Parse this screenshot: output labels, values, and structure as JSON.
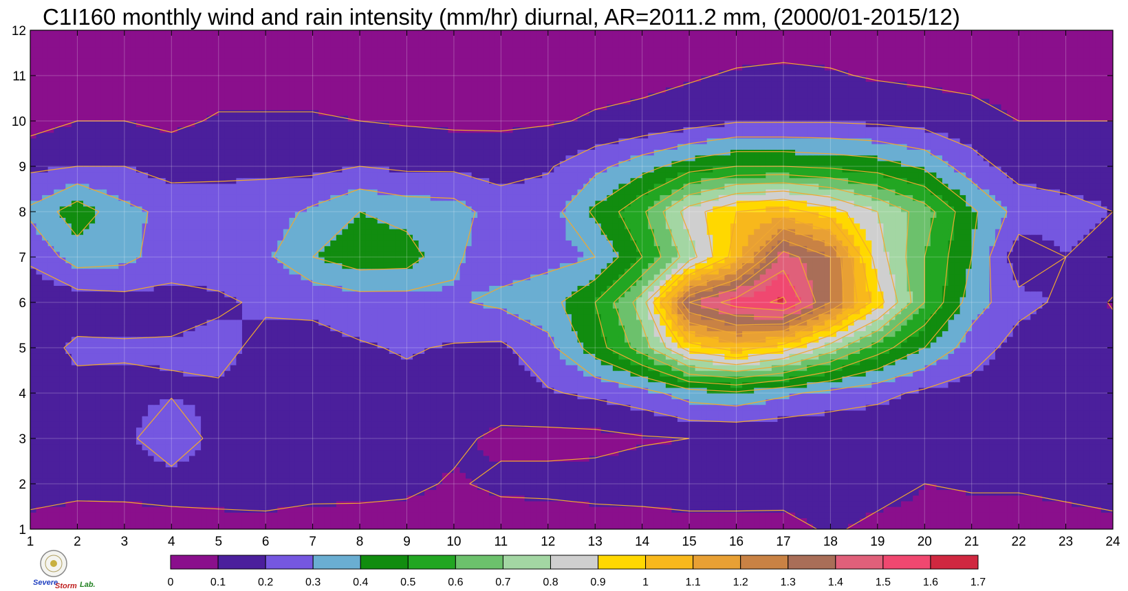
{
  "chart_data": {
    "type": "heatmap",
    "title": "C1I160 monthly wind and rain intensity (mm/hr) diurnal, AR=2011.2 mm, (2000/01-2015/12)",
    "xlabel": "",
    "ylabel": "",
    "x": [
      1,
      2,
      3,
      4,
      5,
      6,
      7,
      8,
      9,
      10,
      11,
      12,
      13,
      14,
      15,
      16,
      17,
      18,
      19,
      20,
      21,
      22,
      23,
      24
    ],
    "y": [
      1,
      2,
      3,
      4,
      5,
      6,
      7,
      8,
      9,
      10,
      11,
      12
    ],
    "xlim": [
      1,
      24
    ],
    "ylim": [
      1,
      12
    ],
    "grid": true,
    "contour_line_color": "#f0a830",
    "colorbar": {
      "ticks": [
        "0",
        "0.1",
        "0.2",
        "0.3",
        "0.4",
        "0.5",
        "0.6",
        "0.7",
        "0.8",
        "0.9",
        "1",
        "1.1",
        "1.2",
        "1.3",
        "1.4",
        "1.5",
        "1.6",
        "1.7"
      ],
      "colors": [
        "#8a0f8c",
        "#4b1f9c",
        "#7557e0",
        "#6aaed2",
        "#118c0f",
        "#22a622",
        "#6cc16c",
        "#a3d6a3",
        "#cfcfcf",
        "#ffd800",
        "#f8b81c",
        "#e8a034",
        "#c98244",
        "#a96e58",
        "#e0607a",
        "#f04870",
        "#d02840"
      ]
    },
    "values": [
      [
        0.04,
        0.05,
        0.04,
        0.05,
        0.06,
        0.06,
        0.05,
        0.06,
        0.06,
        0.05,
        0.05,
        0.04,
        0.05,
        0.05,
        0.06,
        0.06,
        0.05,
        0.12,
        0.06,
        0.06,
        0.06,
        0.06,
        0.07,
        0.08
      ],
      [
        0.18,
        0.13,
        0.14,
        0.15,
        0.15,
        0.16,
        0.14,
        0.13,
        0.12,
        0.09,
        0.12,
        0.13,
        0.14,
        0.15,
        0.16,
        0.16,
        0.17,
        0.17,
        0.16,
        0.1,
        0.11,
        0.11,
        0.12,
        0.13
      ],
      [
        0.19,
        0.18,
        0.17,
        0.28,
        0.16,
        0.15,
        0.15,
        0.13,
        0.1,
        0.12,
        0.08,
        0.07,
        0.07,
        0.09,
        0.1,
        0.1,
        0.1,
        0.1,
        0.11,
        0.12,
        0.13,
        0.14,
        0.16,
        0.18
      ],
      [
        0.17,
        0.17,
        0.18,
        0.19,
        0.19,
        0.18,
        0.18,
        0.18,
        0.17,
        0.17,
        0.15,
        0.19,
        0.22,
        0.26,
        0.35,
        0.38,
        0.32,
        0.27,
        0.23,
        0.18,
        0.16,
        0.15,
        0.16,
        0.18
      ],
      [
        0.15,
        0.22,
        0.21,
        0.21,
        0.22,
        0.18,
        0.17,
        0.19,
        0.21,
        0.19,
        0.18,
        0.27,
        0.45,
        0.65,
        0.95,
        1.05,
        0.95,
        0.75,
        0.55,
        0.4,
        0.25,
        0.16,
        0.14,
        0.15
      ],
      [
        0.12,
        0.14,
        0.16,
        0.17,
        0.19,
        0.21,
        0.22,
        0.25,
        0.25,
        0.29,
        0.32,
        0.36,
        0.5,
        0.75,
        1.4,
        1.55,
        1.62,
        1.3,
        0.95,
        0.6,
        0.35,
        0.23,
        0.18,
        0.09
      ],
      [
        0.22,
        0.35,
        0.33,
        0.24,
        0.23,
        0.28,
        0.4,
        0.46,
        0.45,
        0.31,
        0.26,
        0.27,
        0.3,
        0.5,
        0.75,
        1.05,
        1.45,
        1.3,
        0.85,
        0.6,
        0.4,
        0.14,
        0.2,
        0.17
      ],
      [
        0.32,
        0.46,
        0.33,
        0.27,
        0.24,
        0.25,
        0.32,
        0.4,
        0.36,
        0.35,
        0.24,
        0.25,
        0.42,
        0.58,
        0.85,
        1.0,
        1.05,
        0.95,
        0.8,
        0.65,
        0.42,
        0.26,
        0.22,
        0.2
      ],
      [
        0.18,
        0.2,
        0.2,
        0.16,
        0.18,
        0.18,
        0.17,
        0.2,
        0.18,
        0.18,
        0.17,
        0.19,
        0.27,
        0.36,
        0.45,
        0.5,
        0.5,
        0.48,
        0.45,
        0.38,
        0.24,
        0.16,
        0.17,
        0.18
      ],
      [
        0.06,
        0.1,
        0.1,
        0.08,
        0.11,
        0.11,
        0.11,
        0.1,
        0.09,
        0.08,
        0.08,
        0.09,
        0.11,
        0.12,
        0.15,
        0.19,
        0.19,
        0.19,
        0.18,
        0.16,
        0.14,
        0.1,
        0.1,
        0.1
      ],
      [
        0.05,
        0.06,
        0.06,
        0.06,
        0.06,
        0.06,
        0.06,
        0.06,
        0.06,
        0.06,
        0.06,
        0.06,
        0.07,
        0.08,
        0.09,
        0.11,
        0.12,
        0.11,
        0.09,
        0.08,
        0.07,
        0.06,
        0.06,
        0.06
      ],
      [
        0.04,
        0.04,
        0.04,
        0.04,
        0.04,
        0.04,
        0.04,
        0.04,
        0.04,
        0.04,
        0.04,
        0.04,
        0.04,
        0.04,
        0.05,
        0.05,
        0.05,
        0.05,
        0.05,
        0.05,
        0.04,
        0.04,
        0.04,
        0.04
      ]
    ]
  },
  "logo": {
    "text_severe": "Severe",
    "text_storm": "Storm",
    "text_lab": "Lab."
  }
}
